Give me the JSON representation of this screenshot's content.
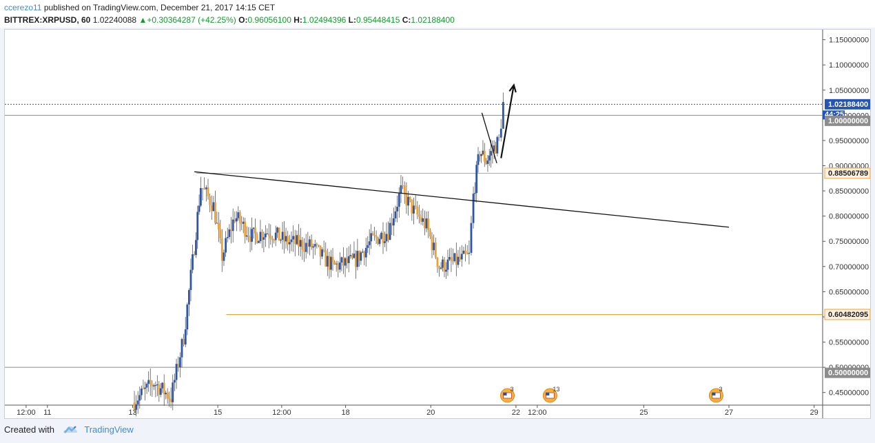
{
  "header": {
    "author": "ccerezo11",
    "published_text": " published on TradingView.com, December 21, 2017 14:15 CET",
    "symbol": "BITTREX:XRPUSD, 60",
    "last_price": "1.02240088",
    "change": "+0.30364287 (+42.25%)",
    "o_label": "O:",
    "o_value": "0.96056100",
    "h_label": "H:",
    "h_value": "1.02494396",
    "l_label": "L:",
    "l_value": "0.95448415",
    "c_label": "C:",
    "c_value": "1.02188400"
  },
  "footer": {
    "created_with": "Created with",
    "brand": "TradingView"
  },
  "colors": {
    "up_candle": "#2e55a5",
    "down_candle": "#f0a030",
    "accent_blue": "#2454b4",
    "orange_line": "#f0a030",
    "gray_badge": "#8c8c8c"
  },
  "chart_data": {
    "type": "candlestick",
    "symbol": "BITTREX:XRPUSD",
    "interval": "60",
    "y_axis": {
      "ticks": [
        "1.15000000",
        "1.10000000",
        "1.05000000",
        "1.00000000",
        "0.95000000",
        "0.90000000",
        "0.85000000",
        "0.80000000",
        "0.75000000",
        "0.70000000",
        "0.65000000",
        "0.60000000",
        "0.55000000",
        "0.50000000",
        "0.45000000"
      ],
      "range": [
        0.425,
        1.17
      ]
    },
    "x_axis": {
      "ticks": [
        "12:00",
        "11",
        "13",
        "15",
        "12:00",
        "18",
        "20",
        "22",
        "12:00",
        "25",
        "27",
        "29"
      ],
      "tick_days": [
        10.5,
        11,
        13,
        15,
        16.5,
        18,
        20,
        22,
        22.5,
        25,
        27,
        29
      ],
      "range": [
        10.0,
        29.2
      ]
    },
    "price_badges": [
      {
        "label": "1.02188400",
        "value": 1.021884,
        "style": "blue"
      },
      {
        "label": "44:25",
        "value": 1.0,
        "style": "blue-small"
      },
      {
        "label": "1.00000000",
        "value": 1.0,
        "style": "gray"
      },
      {
        "label": "0.88506789",
        "value": 0.88506789,
        "style": "orange"
      },
      {
        "label": "0.60482095",
        "value": 0.60482095,
        "style": "orange"
      },
      {
        "label": "0.50000000",
        "value": 0.5,
        "style": "gray"
      }
    ],
    "horizontal_levels": [
      {
        "value": 1.021884,
        "style": "dotted-blue",
        "from_day": 10.0
      },
      {
        "value": 1.0,
        "style": "gray",
        "from_day": 10.0
      },
      {
        "value": 0.88506789,
        "style": "orange",
        "from_day": 14.5
      },
      {
        "value": 0.60482095,
        "style": "orange",
        "from_day": 15.2
      },
      {
        "value": 0.5,
        "style": "gray",
        "from_day": 10.0
      }
    ],
    "trendlines": [
      {
        "from": [
          14.45,
          0.888
        ],
        "to": [
          27.0,
          0.778
        ]
      },
      {
        "from": [
          21.2,
          1.005
        ],
        "to": [
          21.55,
          0.905
        ]
      }
    ],
    "arrow": {
      "from": [
        21.65,
        0.915
      ],
      "to": [
        21.95,
        1.06
      ]
    },
    "events": [
      {
        "day": 21.8,
        "label": "3"
      },
      {
        "day": 22.8,
        "label": "13"
      },
      {
        "day": 26.7,
        "label": "3"
      }
    ],
    "anchors": [
      [
        13.0,
        0.43
      ],
      [
        13.5,
        0.47
      ],
      [
        13.9,
        0.44
      ],
      [
        14.2,
        0.56
      ],
      [
        14.45,
        0.74
      ],
      [
        14.6,
        0.86
      ],
      [
        14.9,
        0.82
      ],
      [
        15.1,
        0.72
      ],
      [
        15.4,
        0.8
      ],
      [
        15.8,
        0.76
      ],
      [
        16.2,
        0.77
      ],
      [
        16.6,
        0.75
      ],
      [
        17.2,
        0.74
      ],
      [
        17.7,
        0.7
      ],
      [
        18.2,
        0.71
      ],
      [
        18.6,
        0.75
      ],
      [
        19.0,
        0.77
      ],
      [
        19.3,
        0.85
      ],
      [
        19.6,
        0.81
      ],
      [
        19.9,
        0.78
      ],
      [
        20.2,
        0.7
      ],
      [
        20.6,
        0.71
      ],
      [
        20.9,
        0.72
      ],
      [
        21.0,
        0.84
      ],
      [
        21.15,
        0.93
      ],
      [
        21.3,
        0.91
      ],
      [
        21.45,
        0.93
      ],
      [
        21.6,
        0.95
      ],
      [
        21.7,
        1.022
      ]
    ],
    "candle_step_days": 0.0417
  }
}
